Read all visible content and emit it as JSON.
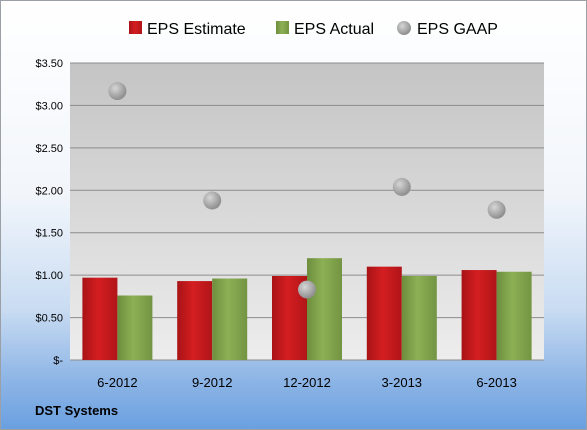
{
  "company": "DST Systems",
  "colors": {
    "estimate": "#c0171a",
    "actual": "#7ea04a",
    "gaap": "#a9a9a9"
  },
  "chart_data": {
    "type": "bar",
    "categories": [
      "6-2012",
      "9-2012",
      "12-2012",
      "3-2013",
      "6-2013"
    ],
    "series": [
      {
        "name": "EPS Estimate",
        "type": "bar",
        "values": [
          0.97,
          0.93,
          0.99,
          1.1,
          1.06
        ]
      },
      {
        "name": "EPS Actual",
        "type": "bar",
        "values": [
          0.76,
          0.96,
          1.2,
          0.99,
          1.04
        ]
      },
      {
        "name": "EPS GAAP",
        "type": "scatter",
        "values": [
          3.17,
          1.88,
          0.83,
          2.04,
          1.77
        ]
      }
    ],
    "y_ticks": [
      {
        "value": 0,
        "label": "$-"
      },
      {
        "value": 0.5,
        "label": "$0.50"
      },
      {
        "value": 1.0,
        "label": "$1.00"
      },
      {
        "value": 1.5,
        "label": "$1.50"
      },
      {
        "value": 2.0,
        "label": "$2.00"
      },
      {
        "value": 2.5,
        "label": "$2.50"
      },
      {
        "value": 3.0,
        "label": "$3.00"
      },
      {
        "value": 3.5,
        "label": "$3.50"
      }
    ],
    "ylim": [
      0,
      3.5
    ],
    "grid": true,
    "legend_position": "top"
  }
}
